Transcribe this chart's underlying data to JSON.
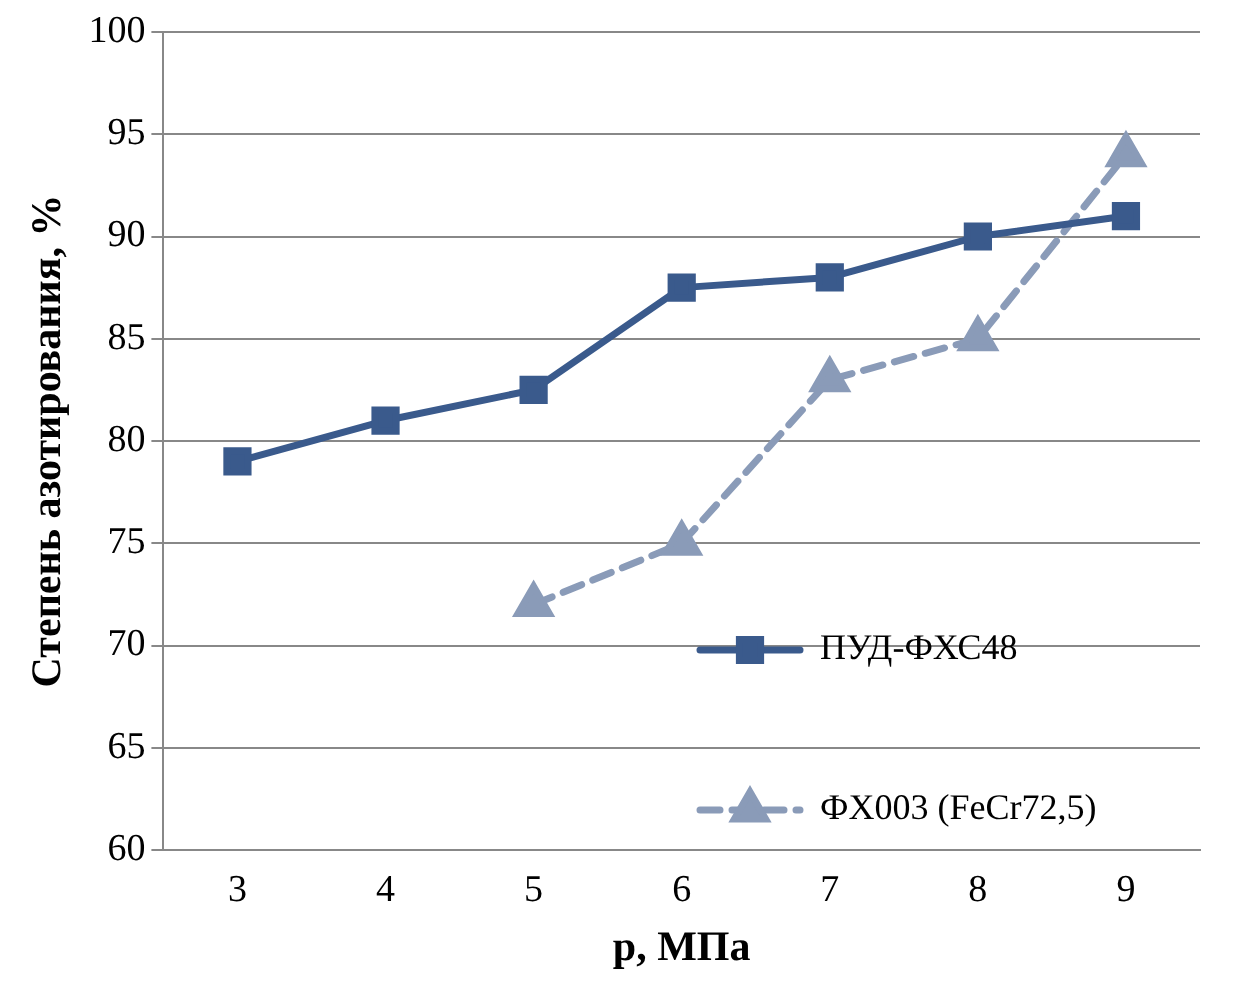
{
  "chart_data": {
    "type": "line",
    "xlabel": "p, МПа",
    "ylabel": "Степень азотирования, %",
    "categories": [
      "3",
      "4",
      "5",
      "6",
      "7",
      "8",
      "9"
    ],
    "series": [
      {
        "name": "ПУД-ФХС48",
        "color": "#3a5a8c",
        "marker": "square",
        "line_style": "solid",
        "values": [
          79,
          81,
          82.5,
          87.5,
          88,
          90,
          91
        ]
      },
      {
        "name": "ФХ003 (FeCr72,5)",
        "color": "#8a9bb8",
        "marker": "triangle",
        "line_style": "dashed",
        "values": [
          null,
          null,
          72,
          75,
          83,
          85,
          94
        ]
      }
    ],
    "ylim": [
      60,
      100
    ],
    "yticks": [
      60,
      65,
      70,
      75,
      80,
      85,
      90,
      95,
      100
    ],
    "grid": "y",
    "legend": "bottom right"
  }
}
